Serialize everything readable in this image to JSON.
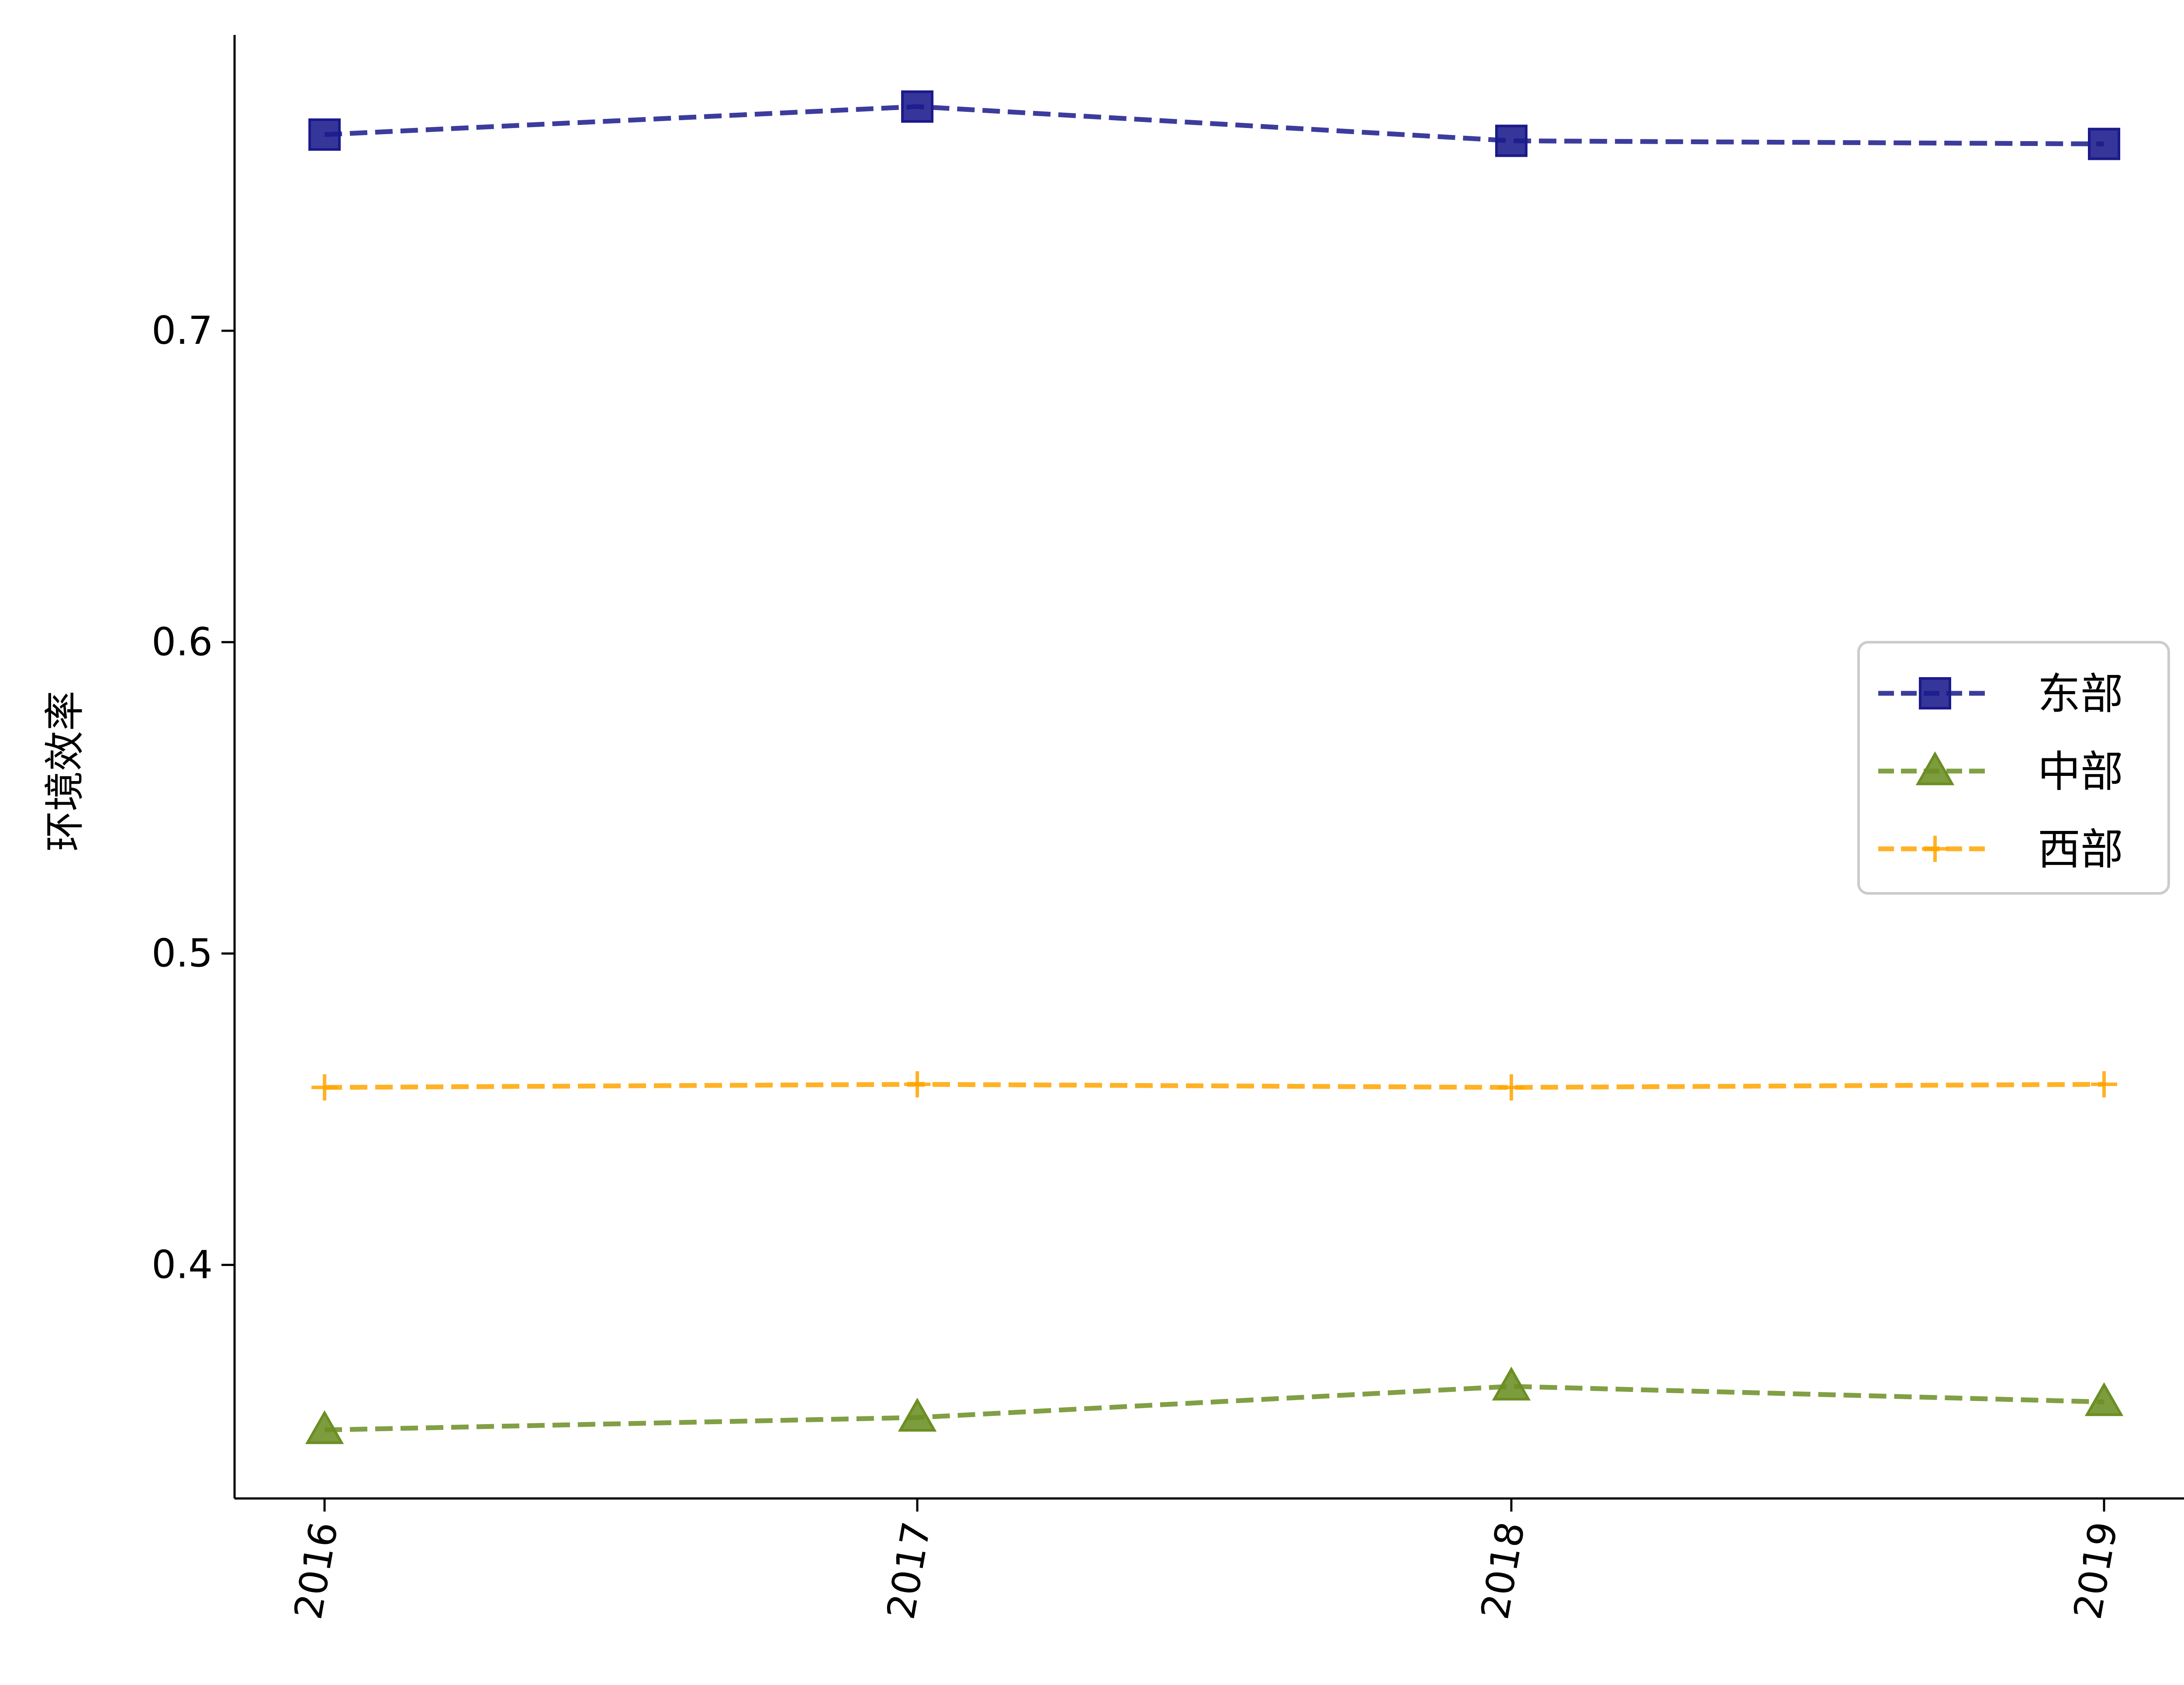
{
  "chart_data": {
    "type": "line",
    "title": "",
    "xlabel": "",
    "ylabel": "环境效率",
    "x": [
      "2016",
      "2017",
      "2018",
      "2019"
    ],
    "yticks": [
      0.4,
      0.5,
      0.6,
      0.7
    ],
    "ytick_labels": [
      "0.4",
      "0.5",
      "0.6",
      "0.7"
    ],
    "ylim": [
      0.325,
      0.795
    ],
    "grid": false,
    "legend_position": "right",
    "series": [
      {
        "name": "东部",
        "values": [
          0.763,
          0.772,
          0.761,
          0.76
        ],
        "color": "#1a1a8c",
        "marker": "square",
        "line_style": "dashed"
      },
      {
        "name": "中部",
        "values": [
          0.347,
          0.351,
          0.361,
          0.356
        ],
        "color": "#6b8e23",
        "marker": "triangle",
        "line_style": "dashed"
      },
      {
        "name": "西部",
        "values": [
          0.457,
          0.458,
          0.457,
          0.458
        ],
        "color": "#ffa500",
        "marker": "plus",
        "line_style": "dashed"
      }
    ]
  }
}
